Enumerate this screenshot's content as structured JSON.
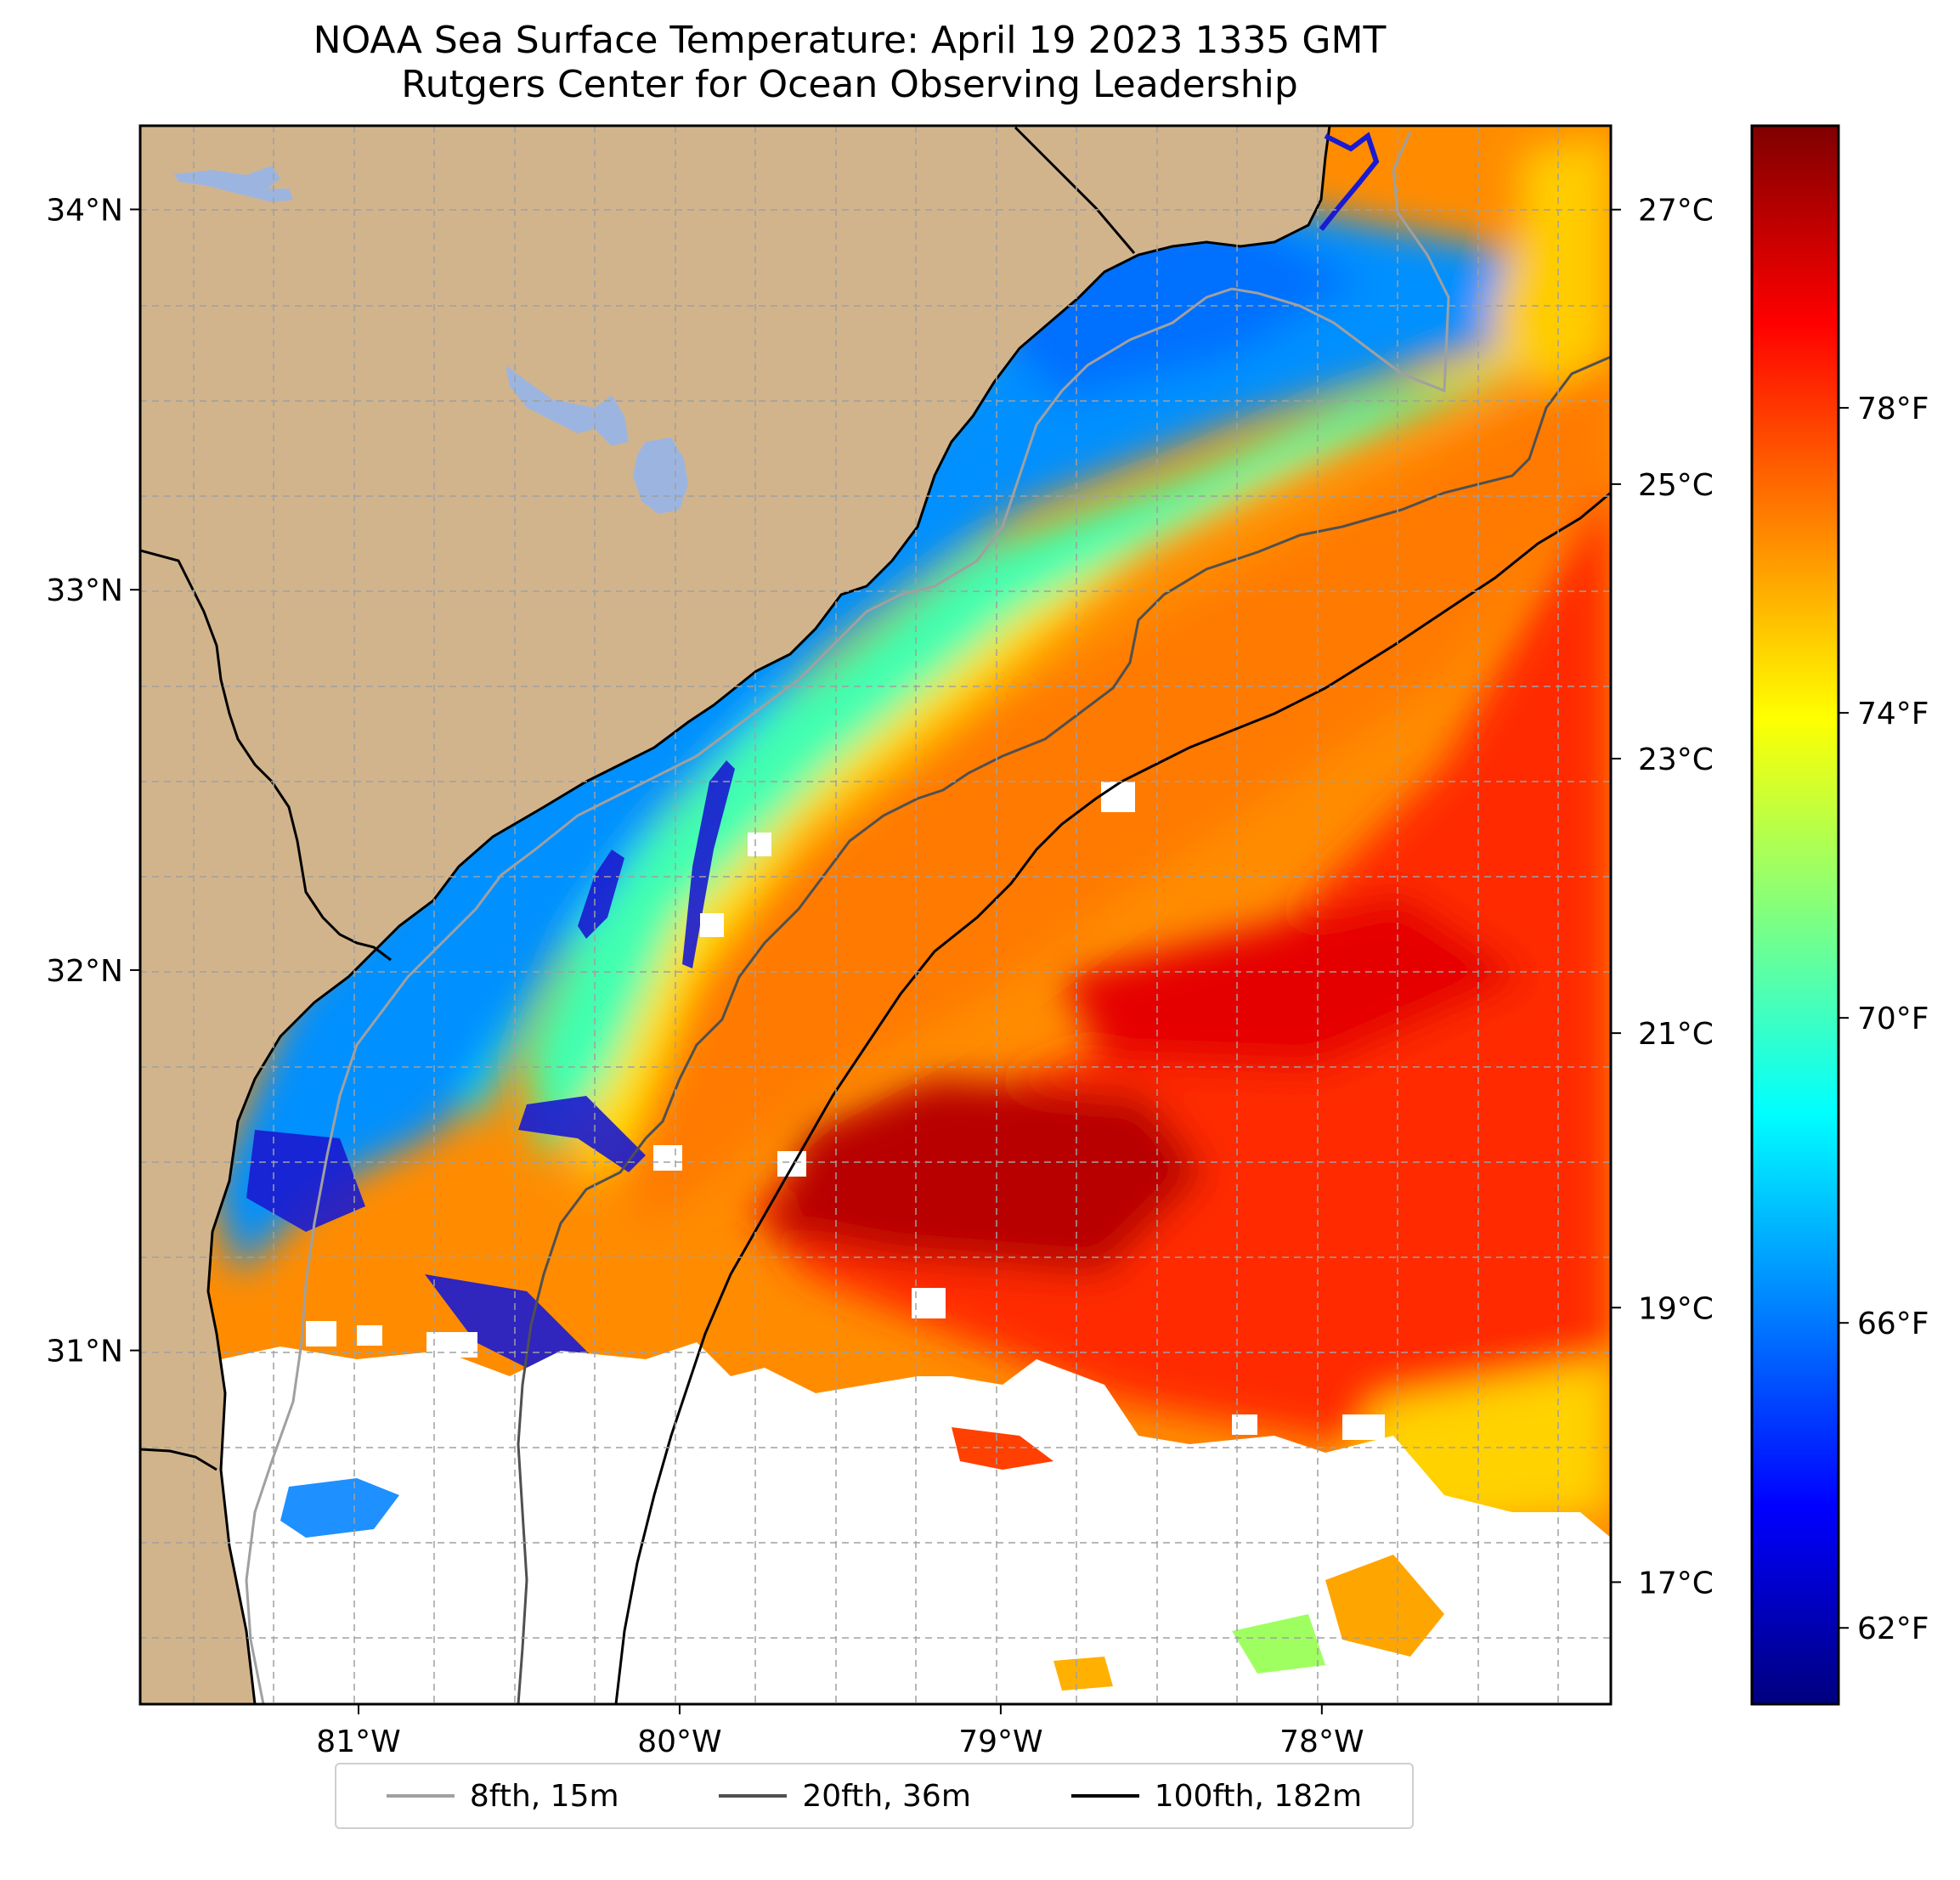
{
  "title": {
    "line1": "NOAA Sea Surface Temperature: April 19 2023 1335 GMT",
    "line2": "Rutgers Center for Ocean Observing Leadership"
  },
  "map": {
    "lon_range": [
      -81.68,
      -77.1
    ],
    "lat_range": [
      30.07,
      34.22
    ],
    "lat_ticks": [
      {
        "value": 34,
        "label": "34°N"
      },
      {
        "value": 33,
        "label": "33°N"
      },
      {
        "value": 32,
        "label": "32°N"
      },
      {
        "value": 31,
        "label": "31°N"
      }
    ],
    "lon_ticks": [
      {
        "value": -81,
        "label": "81°W"
      },
      {
        "value": -80,
        "label": "80°W"
      },
      {
        "value": -79,
        "label": "79°W"
      },
      {
        "value": -78,
        "label": "78°W"
      }
    ],
    "colors": {
      "land": "#d2b48c",
      "lake": "#9cb5e0",
      "no_data": "#ffffff",
      "grid": "#a0a0a0"
    }
  },
  "colorbar": {
    "celsius_ticks": [
      {
        "value": 27,
        "label": "27°C"
      },
      {
        "value": 25,
        "label": "25°C"
      },
      {
        "value": 23,
        "label": "23°C"
      },
      {
        "value": 21,
        "label": "21°C"
      },
      {
        "value": 19,
        "label": "19°C"
      },
      {
        "value": 17,
        "label": "17°C"
      }
    ],
    "fahrenheit_ticks": [
      {
        "value": 78,
        "label": "78°F"
      },
      {
        "value": 74,
        "label": "74°F"
      },
      {
        "value": 70,
        "label": "70°F"
      },
      {
        "value": 66,
        "label": "66°F"
      },
      {
        "value": 62,
        "label": "62°F"
      }
    ],
    "range_f": [
      61.0,
      81.7
    ],
    "colormap": [
      "#00007f",
      "#0000ff",
      "#0080ff",
      "#00ffff",
      "#80ff80",
      "#ffff00",
      "#ff8000",
      "#ff0000",
      "#7f0000"
    ]
  },
  "legend": {
    "entries": [
      {
        "label": "8fth, 15m",
        "color": "#a0a0a0"
      },
      {
        "label": "20fth, 36m",
        "color": "#505050"
      },
      {
        "label": "100fth, 182m",
        "color": "#000000"
      }
    ]
  }
}
